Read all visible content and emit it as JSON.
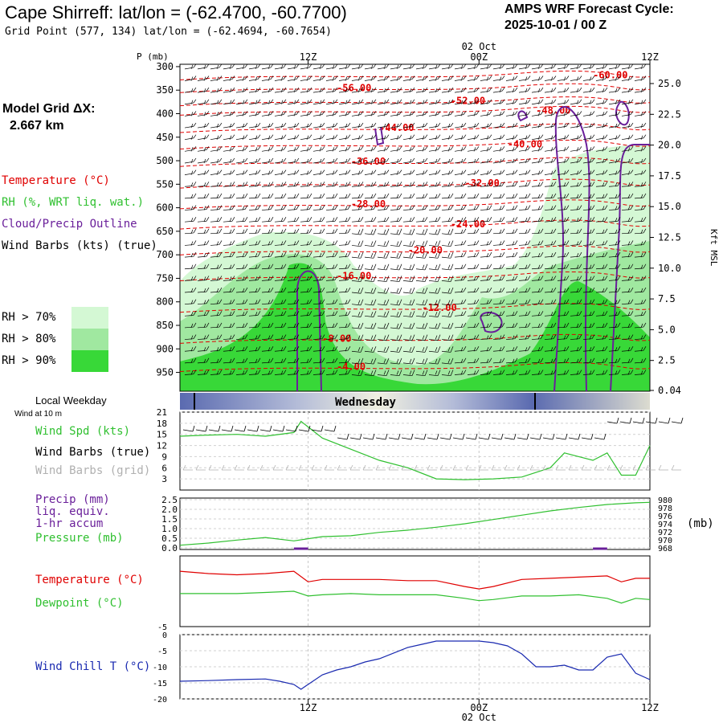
{
  "header": {
    "station_title": "Cape Shirreff:  lat/lon = (-62.4700, -60.7700)",
    "grid_point": "Grid Point (577, 134) lat/lon = (-62.4694, -60.7654)",
    "cycle_line1": "AMPS WRF Forecast Cycle:",
    "cycle_line2": "2025-10-01 / 00  Z"
  },
  "model_grid": {
    "label": "Model Grid ΔX:",
    "value": "2.667 km"
  },
  "legend": {
    "temperature": "Temperature (°C)",
    "rh": "RH (%, WRT liq. wat.)",
    "cloud": "Cloud/Precip Outline",
    "wind_barbs": "Wind Barbs (kts) (true)",
    "rh70": "RH > 70%",
    "rh80": "RH > 80%",
    "rh90": "RH > 90%",
    "rh_colors": [
      "#d4f8d4",
      "#a0e8a0",
      "#38d838"
    ]
  },
  "colors": {
    "temperature": "#e00000",
    "rh": "#30c030",
    "cloud": "#6a1f9a",
    "wind_chill": "#1a2ab0",
    "barb_grid": "#b0b0b0"
  },
  "chart_data": [
    {
      "type": "time-height cross section",
      "ylabel": "P (mb)",
      "ylabel_right": "Kft MSL",
      "p_ticks": [
        "300",
        "350",
        "400",
        "450",
        "500",
        "550",
        "600",
        "650",
        "700",
        "750",
        "800",
        "850",
        "900",
        "950"
      ],
      "kft_ticks": [
        "25.0",
        "22.5",
        "20.0",
        "17.5",
        "15.0",
        "12.5",
        "10.0",
        "7.5",
        "5.0",
        "2.5",
        "0.04"
      ],
      "time_ticks_top": [
        "12Z",
        "00Z",
        "12Z"
      ],
      "date_label": "02 Oct",
      "isotherm_labels": [
        {
          "text": "-60.00",
          "t": 29,
          "p": 318
        },
        {
          "text": "-56.00",
          "t": 11,
          "p": 345
        },
        {
          "text": "-52.00",
          "t": 19,
          "p": 373
        },
        {
          "text": "-48.00",
          "t": 25,
          "p": 393
        },
        {
          "text": "-44.00",
          "t": 14,
          "p": 430
        },
        {
          "text": "-40.00",
          "t": 23,
          "p": 465
        },
        {
          "text": "-36.00",
          "t": 12,
          "p": 502
        },
        {
          "text": "-32.00",
          "t": 20,
          "p": 548
        },
        {
          "text": "-28.00",
          "t": 12,
          "p": 592
        },
        {
          "text": "-24.00",
          "t": 19,
          "p": 635
        },
        {
          "text": "-20.00",
          "t": 16,
          "p": 690
        },
        {
          "text": "-16.00",
          "t": 11,
          "p": 745
        },
        {
          "text": "-12.00",
          "t": 17,
          "p": 812
        },
        {
          "text": "-8.00",
          "t": 10,
          "p": 878
        },
        {
          "text": "-4.00",
          "t": 11,
          "p": 938
        }
      ]
    },
    {
      "type": "day-band",
      "title": "Local Weekday",
      "day_label": "Wednesday"
    },
    {
      "type": "line",
      "title": "Wind at 10 m",
      "series": [
        {
          "name": "Wind Spd (kts)",
          "x": [
            0,
            2,
            4,
            6,
            8,
            8.5,
            10,
            12,
            14,
            16,
            18,
            20,
            22,
            24,
            26,
            27,
            28,
            29,
            30,
            31,
            32,
            33
          ],
          "values": [
            14.5,
            14.8,
            15,
            14.5,
            15.5,
            18.5,
            14,
            11,
            8,
            6,
            3,
            2.8,
            3,
            3.5,
            6,
            10,
            9,
            8,
            10,
            4,
            4,
            12
          ]
        }
      ],
      "xlim": [
        0,
        33
      ],
      "ylim": [
        0,
        21
      ],
      "y_ticks": [
        "21",
        "18",
        "15",
        "12",
        "9",
        "6",
        "3"
      ],
      "labels": {
        "speed": "Wind Spd (kts)",
        "barbs_true": "Wind Barbs (true)",
        "barbs_grid": "Wind Barbs (grid)"
      }
    },
    {
      "type": "line",
      "series": [
        {
          "name": "Pressure (mb)",
          "x": [
            0,
            2,
            4,
            6,
            8,
            10,
            12,
            14,
            16,
            18,
            20,
            22,
            24,
            26,
            28,
            30,
            32,
            33
          ],
          "values": [
            969.0,
            969.5,
            970.2,
            970.8,
            970.0,
            971.0,
            971.2,
            972.0,
            972.5,
            973.2,
            974.0,
            975.0,
            976.0,
            977.0,
            977.8,
            978.5,
            978.9,
            979.0
          ],
          "ylim": [
            968,
            980
          ]
        },
        {
          "name": "Precip (mm) 1-hr accum",
          "x": [
            8,
            9,
            29,
            30
          ],
          "values": [
            0.02,
            0.02,
            0.05,
            0.05
          ],
          "ylim": [
            0,
            2.5
          ]
        }
      ],
      "xlim": [
        0,
        33
      ],
      "y_ticks_left": [
        "2.5",
        "2.0",
        "1.5",
        "1.0",
        "0.5",
        "0.0"
      ],
      "y_ticks_right": [
        "980",
        "978",
        "976",
        "974",
        "972",
        "970",
        "968"
      ],
      "unit_right": "(mb)",
      "labels": {
        "precip1": "Precip (mm)",
        "precip2": "liq. equiv.",
        "precip3": "1-hr accum",
        "pressure": "Pressure (mb)"
      }
    },
    {
      "type": "line",
      "series": [
        {
          "name": "Temperature (°C)",
          "x": [
            0,
            2,
            4,
            6,
            8,
            9,
            10,
            12,
            14,
            16,
            18,
            20,
            21,
            22,
            24,
            26,
            28,
            30,
            31,
            32,
            33
          ],
          "values": [
            -0.3,
            -0.5,
            -0.6,
            -0.5,
            -0.3,
            -1.2,
            -1.0,
            -1.0,
            -1.0,
            -1.1,
            -1.1,
            -1.6,
            -1.8,
            -1.6,
            -1.0,
            -0.9,
            -0.8,
            -0.7,
            -1.2,
            -0.9,
            -0.9
          ]
        },
        {
          "name": "Dewpoint (°C)",
          "x": [
            0,
            2,
            4,
            6,
            8,
            9,
            10,
            12,
            14,
            16,
            18,
            20,
            21,
            22,
            24,
            26,
            28,
            30,
            31,
            32,
            33
          ],
          "values": [
            -2.2,
            -2.2,
            -2.2,
            -2.1,
            -2.0,
            -2.4,
            -2.3,
            -2.2,
            -2.3,
            -2.3,
            -2.3,
            -2.6,
            -2.8,
            -2.7,
            -2.4,
            -2.4,
            -2.3,
            -2.6,
            -3.0,
            -2.6,
            -2.7
          ]
        }
      ],
      "xlim": [
        0,
        33
      ],
      "ylim": [
        -5,
        1
      ],
      "y_ticks": [
        "-5"
      ],
      "labels": {
        "temperature": "Temperature (°C)",
        "dewpoint": "Dewpoint (°C)"
      }
    },
    {
      "type": "line",
      "series": [
        {
          "name": "Wind Chill T (°C)",
          "x": [
            0,
            2,
            4,
            6,
            7,
            8,
            8.5,
            9,
            10,
            11,
            12,
            13,
            14,
            16,
            17,
            18,
            20,
            21,
            22,
            23,
            24,
            25,
            26,
            27,
            28,
            29,
            30,
            31,
            32,
            33
          ],
          "values": [
            -14.5,
            -14.3,
            -14,
            -13.8,
            -14.5,
            -15.5,
            -17,
            -15.5,
            -12.5,
            -11,
            -10,
            -8.5,
            -7.5,
            -4,
            -3,
            -2,
            -2,
            -2,
            -2.5,
            -3.5,
            -6,
            -10,
            -10,
            -9.5,
            -11,
            -11,
            -7,
            -6,
            -12,
            -14
          ]
        }
      ],
      "xlim": [
        0,
        33
      ],
      "ylim": [
        -20,
        0
      ],
      "y_ticks": [
        "0",
        "-5",
        "-10",
        "-15",
        "-20"
      ],
      "labels": {
        "wind_chill": "Wind Chill T (°C)"
      },
      "time_ticks_bottom": [
        "12Z",
        "00Z",
        "12Z"
      ],
      "date_label": "02 Oct"
    }
  ]
}
